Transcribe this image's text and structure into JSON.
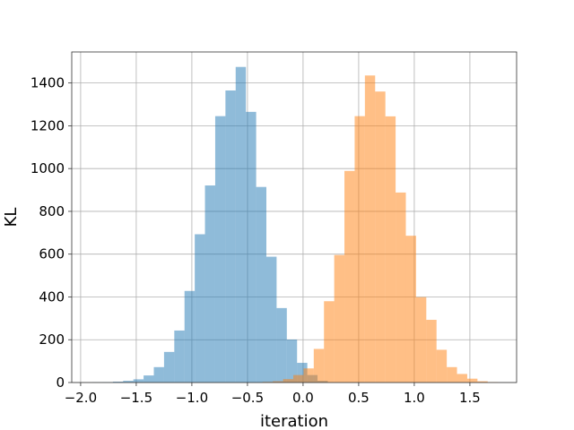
{
  "chart_data": {
    "type": "histogram",
    "title": "",
    "xlabel": "iteration",
    "ylabel": "KL",
    "xlim": [
      -2.08,
      1.92
    ],
    "ylim": [
      0,
      1545
    ],
    "grid": true,
    "legend": "none",
    "x_ticks": [
      -2.0,
      -1.5,
      -1.0,
      -0.5,
      0.0,
      0.5,
      1.0,
      1.5
    ],
    "x_tick_labels": [
      "−2.0",
      "−1.5",
      "−1.0",
      "−0.5",
      "0.0",
      "0.5",
      "1.0",
      "1.5"
    ],
    "y_ticks": [
      0,
      200,
      400,
      600,
      800,
      1000,
      1200,
      1400
    ],
    "y_tick_labels": [
      "0",
      "200",
      "400",
      "600",
      "800",
      "1000",
      "1200",
      "1400"
    ],
    "series": [
      {
        "color": "#1f77b4",
        "opacity": 0.5,
        "bin_width": 0.092,
        "bin_starts": [
          -1.894,
          -1.802,
          -1.71,
          -1.618,
          -1.526,
          -1.434,
          -1.342,
          -1.25,
          -1.158,
          -1.066,
          -0.974,
          -0.882,
          -0.79,
          -0.698,
          -0.606,
          -0.514,
          -0.422,
          -0.33,
          -0.238,
          -0.146,
          -0.054,
          0.038,
          0.13
        ],
        "counts": [
          1,
          2,
          4,
          8,
          15,
          33,
          72,
          143,
          243,
          428,
          693,
          921,
          1245,
          1365,
          1475,
          1265,
          914,
          588,
          348,
          201,
          92,
          35,
          8
        ]
      },
      {
        "color": "#ff7f0e",
        "opacity": 0.5,
        "bin_width": 0.092,
        "bin_starts": [
          -0.364,
          -0.272,
          -0.18,
          -0.088,
          0.004,
          0.096,
          0.188,
          0.28,
          0.372,
          0.464,
          0.556,
          0.648,
          0.74,
          0.832,
          0.924,
          1.016,
          1.108,
          1.2,
          1.292,
          1.384,
          1.476,
          1.568,
          1.66
        ],
        "counts": [
          3,
          6,
          16,
          35,
          66,
          157,
          380,
          596,
          989,
          1245,
          1435,
          1360,
          1244,
          888,
          686,
          399,
          293,
          153,
          72,
          40,
          18,
          6,
          2
        ]
      }
    ]
  }
}
